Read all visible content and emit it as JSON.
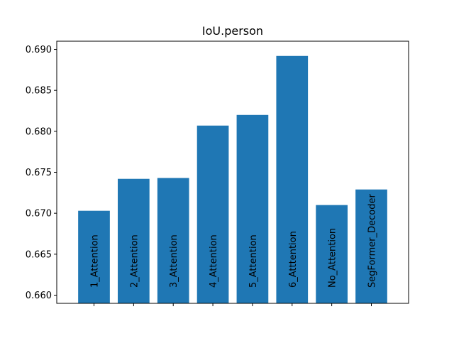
{
  "chart_data": {
    "type": "bar",
    "title": "IoU.person",
    "xlabel": "",
    "ylabel": "",
    "categories": [
      "1_Attention",
      "2_Attention",
      "3_Attention",
      "4_Attention",
      "5_Attention",
      "6_Atttention",
      "No_Attention",
      "SegFormer_Decoder"
    ],
    "values": [
      0.6703,
      0.6742,
      0.6743,
      0.6807,
      0.682,
      0.6892,
      0.671,
      0.6729
    ],
    "ylim": [
      0.659,
      0.691
    ],
    "yticks": [
      0.66,
      0.665,
      0.67,
      0.675,
      0.68,
      0.685,
      0.69
    ],
    "ytick_labels": [
      "0.660",
      "0.665",
      "0.670",
      "0.675",
      "0.680",
      "0.685",
      "0.690"
    ],
    "grid": false,
    "colors": {
      "bar": "#1f77b4",
      "axis": "#000000"
    }
  }
}
